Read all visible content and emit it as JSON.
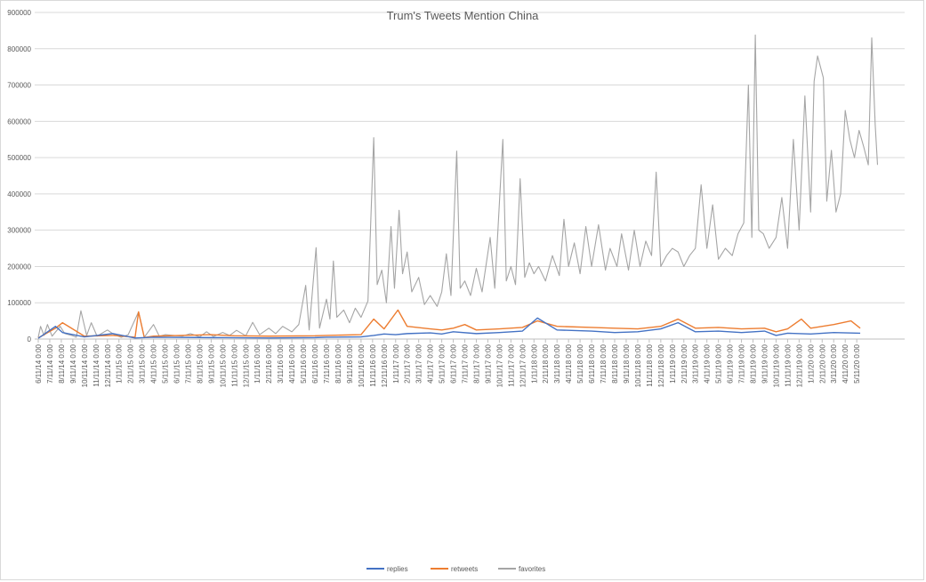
{
  "chart_data": {
    "type": "line",
    "title": "Trum's Tweets Mention China",
    "xlabel": "",
    "ylabel": "",
    "ylim": [
      0,
      900000
    ],
    "y_ticks": [
      "0",
      "100000",
      "200000",
      "300000",
      "400000",
      "500000",
      "600000",
      "700000",
      "800000",
      "900000"
    ],
    "x_ticks": [
      "6/11/14 0:00",
      "7/11/14 0:00",
      "8/11/14 0:00",
      "9/11/14 0:00",
      "10/11/14 0:00",
      "11/11/14 0:00",
      "12/11/14 0:00",
      "1/11/15 0:00",
      "2/11/15 0:00",
      "3/11/15 0:00",
      "4/11/15 0:00",
      "5/11/15 0:00",
      "6/11/15 0:00",
      "7/11/15 0:00",
      "8/11/15 0:00",
      "9/11/15 0:00",
      "10/11/15 0:00",
      "11/11/15 0:00",
      "12/11/15 0:00",
      "1/11/16 0:00",
      "2/11/16 0:00",
      "3/11/16 0:00",
      "4/11/16 0:00",
      "5/11/16 0:00",
      "6/11/16 0:00",
      "7/11/16 0:00",
      "8/11/16 0:00",
      "9/11/16 0:00",
      "10/11/16 0:00",
      "11/11/16 0:00",
      "12/11/16 0:00",
      "1/11/17 0:00",
      "2/11/17 0:00",
      "3/11/17 0:00",
      "4/11/17 0:00",
      "5/11/17 0:00",
      "6/11/17 0:00",
      "7/11/17 0:00",
      "8/11/17 0:00",
      "9/11/17 0:00",
      "10/11/17 0:00",
      "11/11/17 0:00",
      "12/11/17 0:00",
      "1/11/18 0:00",
      "2/11/18 0:00",
      "3/11/18 0:00",
      "4/11/18 0:00",
      "5/11/18 0:00",
      "6/11/18 0:00",
      "7/11/18 0:00",
      "8/11/18 0:00",
      "9/11/18 0:00",
      "10/11/18 0:00",
      "11/11/18 0:00",
      "12/11/18 0:00",
      "1/11/19 0:00",
      "2/11/19 0:00",
      "3/11/19 0:00",
      "4/11/19 0:00",
      "5/11/19 0:00",
      "6/11/19 0:00",
      "7/11/19 0:00",
      "8/11/19 0:00",
      "9/11/19 0:00",
      "10/11/19 0:00",
      "11/11/19 0:00",
      "12/11/19 0:00",
      "1/11/20 0:00",
      "2/11/20 0:00",
      "3/11/20 0:00",
      "4/11/20 0:00",
      "5/11/20 0:00"
    ],
    "grid": true,
    "legend_position": "bottom",
    "series": [
      {
        "name": "replies",
        "color": "#4472C4",
        "points": [
          [
            0,
            2000
          ],
          [
            1.5,
            35000
          ],
          [
            2.1,
            18000
          ],
          [
            4,
            6000
          ],
          [
            6.5,
            15000
          ],
          [
            8.4,
            3000
          ],
          [
            10,
            5000
          ],
          [
            15,
            4000
          ],
          [
            20,
            3000
          ],
          [
            24,
            4000
          ],
          [
            25,
            5000
          ],
          [
            28,
            6000
          ],
          [
            29.1,
            10000
          ],
          [
            30,
            14000
          ],
          [
            31,
            12000
          ],
          [
            32,
            15000
          ],
          [
            34,
            17000
          ],
          [
            35,
            14000
          ],
          [
            36,
            20000
          ],
          [
            38,
            15000
          ],
          [
            40,
            18000
          ],
          [
            42,
            22000
          ],
          [
            43.3,
            58000
          ],
          [
            45,
            25000
          ],
          [
            48,
            22000
          ],
          [
            50,
            18000
          ],
          [
            52,
            20000
          ],
          [
            54,
            28000
          ],
          [
            55.5,
            45000
          ],
          [
            57,
            20000
          ],
          [
            59,
            22000
          ],
          [
            61,
            18000
          ],
          [
            63,
            22000
          ],
          [
            64,
            10000
          ],
          [
            65,
            16000
          ],
          [
            67,
            14000
          ],
          [
            69,
            18000
          ],
          [
            71.3,
            16000
          ]
        ]
      },
      {
        "name": "retweets",
        "color": "#ED7D31",
        "points": [
          [
            0,
            3000
          ],
          [
            1.5,
            30000
          ],
          [
            2.1,
            45000
          ],
          [
            4,
            8000
          ],
          [
            6.5,
            10000
          ],
          [
            8.4,
            5000
          ],
          [
            8.7,
            75000
          ],
          [
            9.2,
            4000
          ],
          [
            10,
            8000
          ],
          [
            12.4,
            10000
          ],
          [
            15,
            12000
          ],
          [
            17,
            9000
          ],
          [
            20,
            8000
          ],
          [
            24,
            9000
          ],
          [
            25,
            10000
          ],
          [
            28,
            12000
          ],
          [
            29.1,
            55000
          ],
          [
            30,
            28000
          ],
          [
            31.2,
            80000
          ],
          [
            32,
            35000
          ],
          [
            34,
            28000
          ],
          [
            35,
            25000
          ],
          [
            36,
            30000
          ],
          [
            37,
            40000
          ],
          [
            38,
            25000
          ],
          [
            40,
            28000
          ],
          [
            42,
            32000
          ],
          [
            43.3,
            50000
          ],
          [
            45,
            35000
          ],
          [
            48,
            32000
          ],
          [
            50,
            30000
          ],
          [
            52,
            28000
          ],
          [
            54,
            35000
          ],
          [
            55.5,
            55000
          ],
          [
            57,
            30000
          ],
          [
            59,
            32000
          ],
          [
            61,
            28000
          ],
          [
            63,
            30000
          ],
          [
            64,
            20000
          ],
          [
            65,
            28000
          ],
          [
            66.2,
            55000
          ],
          [
            67,
            30000
          ],
          [
            69,
            40000
          ],
          [
            70.5,
            50000
          ],
          [
            71.3,
            30000
          ]
        ]
      },
      {
        "name": "favorites",
        "color": "#A5A5A5",
        "points": [
          [
            0,
            5000
          ],
          [
            0.2,
            35000
          ],
          [
            0.5,
            10000
          ],
          [
            0.8,
            40000
          ],
          [
            1.2,
            8000
          ],
          [
            1.9,
            35000
          ],
          [
            2.3,
            15000
          ],
          [
            2.9,
            10000
          ],
          [
            3.3,
            5000
          ],
          [
            3.7,
            78000
          ],
          [
            4.2,
            10000
          ],
          [
            4.6,
            45000
          ],
          [
            5.1,
            8000
          ],
          [
            6,
            25000
          ],
          [
            6.6,
            12000
          ],
          [
            7.2,
            5000
          ],
          [
            7.8,
            12000
          ],
          [
            8.7,
            75000
          ],
          [
            9.2,
            5000
          ],
          [
            10,
            40000
          ],
          [
            10.5,
            8000
          ],
          [
            11,
            12000
          ],
          [
            12.5,
            8000
          ],
          [
            13.2,
            15000
          ],
          [
            14,
            6000
          ],
          [
            14.6,
            20000
          ],
          [
            15.2,
            7000
          ],
          [
            16,
            18000
          ],
          [
            16.6,
            10000
          ],
          [
            17.2,
            24000
          ],
          [
            18,
            9000
          ],
          [
            18.6,
            46000
          ],
          [
            19.2,
            12000
          ],
          [
            20,
            30000
          ],
          [
            20.6,
            15000
          ],
          [
            21.2,
            35000
          ],
          [
            22,
            20000
          ],
          [
            22.6,
            40000
          ],
          [
            23.2,
            148000
          ],
          [
            23.5,
            25000
          ],
          [
            24.1,
            252000
          ],
          [
            24.4,
            30000
          ],
          [
            25,
            110000
          ],
          [
            25.3,
            55000
          ],
          [
            25.6,
            215000
          ],
          [
            25.9,
            60000
          ],
          [
            26.5,
            80000
          ],
          [
            27,
            45000
          ],
          [
            27.5,
            85000
          ],
          [
            28,
            60000
          ],
          [
            28.6,
            105000
          ],
          [
            29.1,
            555000
          ],
          [
            29.4,
            150000
          ],
          [
            29.8,
            190000
          ],
          [
            30.2,
            100000
          ],
          [
            30.6,
            310000
          ],
          [
            30.9,
            140000
          ],
          [
            31.3,
            355000
          ],
          [
            31.6,
            180000
          ],
          [
            32,
            240000
          ],
          [
            32.4,
            130000
          ],
          [
            33,
            170000
          ],
          [
            33.5,
            95000
          ],
          [
            34,
            120000
          ],
          [
            34.6,
            90000
          ],
          [
            35,
            130000
          ],
          [
            35.4,
            235000
          ],
          [
            35.8,
            120000
          ],
          [
            36.3,
            518000
          ],
          [
            36.6,
            140000
          ],
          [
            37,
            160000
          ],
          [
            37.5,
            120000
          ],
          [
            38,
            195000
          ],
          [
            38.5,
            130000
          ],
          [
            39.2,
            280000
          ],
          [
            39.6,
            140000
          ],
          [
            40.3,
            550000
          ],
          [
            40.6,
            160000
          ],
          [
            41,
            200000
          ],
          [
            41.4,
            150000
          ],
          [
            41.8,
            442000
          ],
          [
            42.2,
            170000
          ],
          [
            42.6,
            210000
          ],
          [
            43,
            180000
          ],
          [
            43.4,
            200000
          ],
          [
            44,
            160000
          ],
          [
            44.6,
            230000
          ],
          [
            45.2,
            175000
          ],
          [
            45.6,
            330000
          ],
          [
            46,
            200000
          ],
          [
            46.5,
            265000
          ],
          [
            47,
            180000
          ],
          [
            47.5,
            310000
          ],
          [
            48,
            200000
          ],
          [
            48.6,
            315000
          ],
          [
            49.2,
            190000
          ],
          [
            49.6,
            250000
          ],
          [
            50.2,
            200000
          ],
          [
            50.6,
            290000
          ],
          [
            51.2,
            190000
          ],
          [
            51.7,
            300000
          ],
          [
            52.2,
            200000
          ],
          [
            52.7,
            270000
          ],
          [
            53.2,
            230000
          ],
          [
            53.6,
            460000
          ],
          [
            54,
            200000
          ],
          [
            54.5,
            230000
          ],
          [
            55,
            250000
          ],
          [
            55.5,
            240000
          ],
          [
            56,
            200000
          ],
          [
            56.5,
            230000
          ],
          [
            57,
            250000
          ],
          [
            57.5,
            425000
          ],
          [
            58,
            250000
          ],
          [
            58.5,
            370000
          ],
          [
            59,
            220000
          ],
          [
            59.6,
            250000
          ],
          [
            60.2,
            230000
          ],
          [
            60.7,
            290000
          ],
          [
            61.2,
            320000
          ],
          [
            61.6,
            700000
          ],
          [
            61.9,
            280000
          ],
          [
            62.2,
            838000
          ],
          [
            62.5,
            300000
          ],
          [
            62.9,
            290000
          ],
          [
            63.4,
            250000
          ],
          [
            64,
            280000
          ],
          [
            64.5,
            390000
          ],
          [
            65,
            250000
          ],
          [
            65.5,
            550000
          ],
          [
            66,
            300000
          ],
          [
            66.5,
            670000
          ],
          [
            67,
            350000
          ],
          [
            67.3,
            710000
          ],
          [
            67.6,
            780000
          ],
          [
            68.1,
            720000
          ],
          [
            68.4,
            380000
          ],
          [
            68.8,
            520000
          ],
          [
            69.2,
            350000
          ],
          [
            69.6,
            400000
          ],
          [
            70,
            630000
          ],
          [
            70.4,
            550000
          ],
          [
            70.8,
            500000
          ],
          [
            71.2,
            575000
          ],
          [
            71.6,
            530000
          ],
          [
            72,
            480000
          ],
          [
            72.3,
            830000
          ],
          [
            72.6,
            590000
          ],
          [
            72.8,
            480000
          ]
        ]
      }
    ]
  }
}
